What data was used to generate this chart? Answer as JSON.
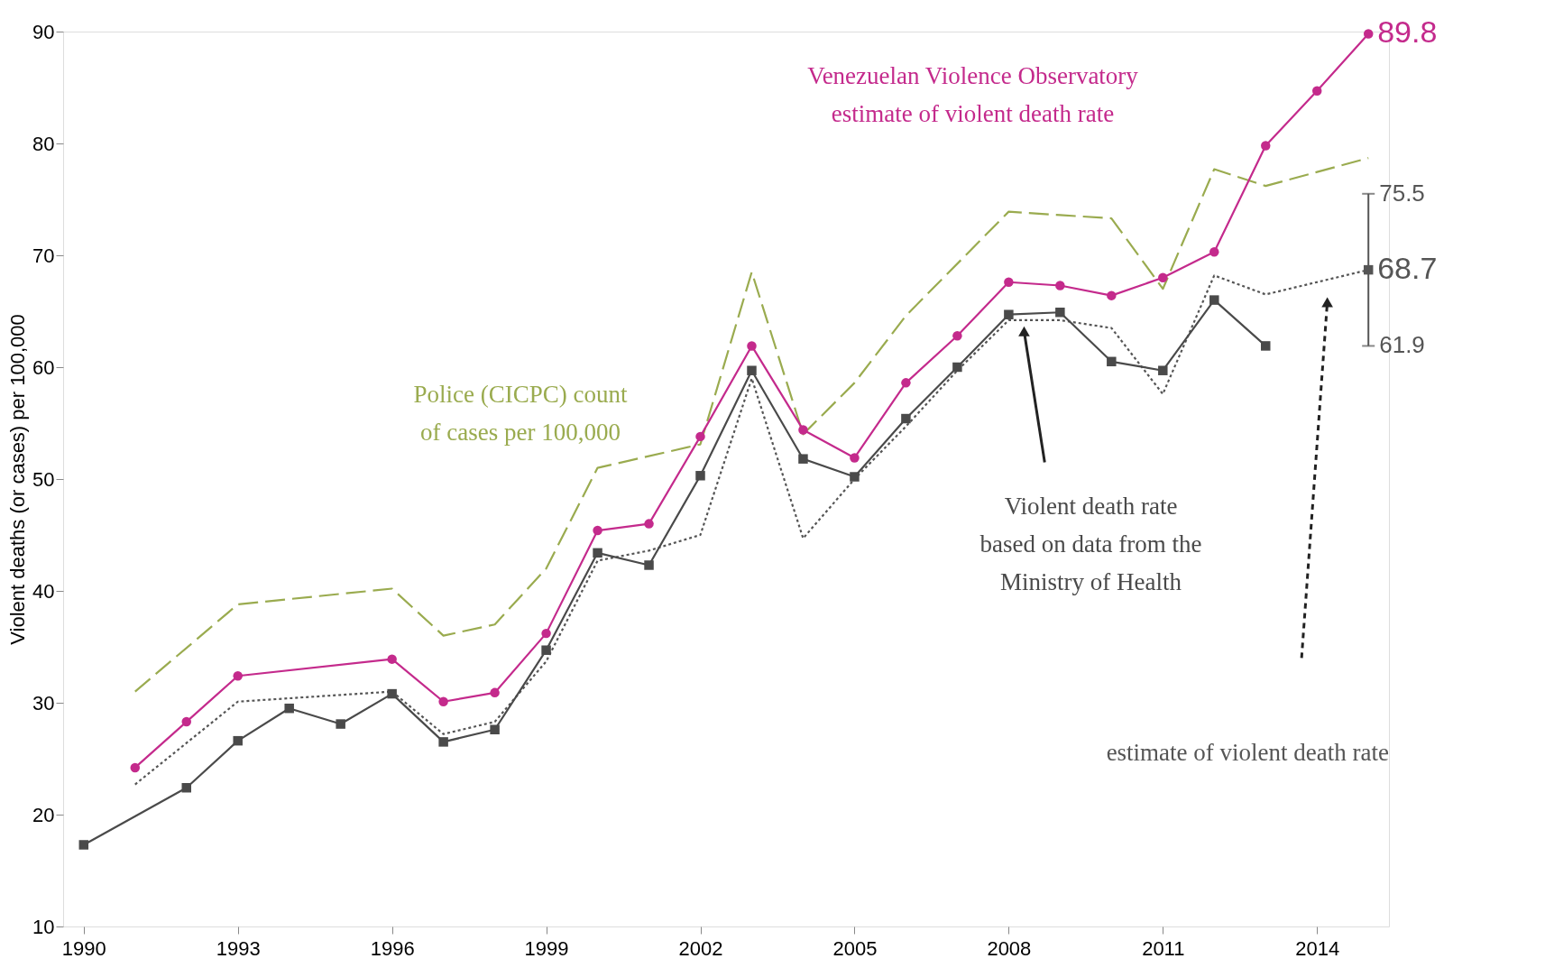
{
  "chart_data": {
    "type": "line",
    "ylabel": "Violent deaths (or cases) per 100,000",
    "xlim": [
      1989.6,
      2015.4
    ],
    "ylim": [
      10,
      90
    ],
    "xticks": [
      1990,
      1993,
      1996,
      1999,
      2002,
      2005,
      2008,
      2011,
      2014
    ],
    "yticks": [
      10,
      20,
      30,
      40,
      50,
      60,
      70,
      80,
      90
    ],
    "grid": false,
    "series": [
      {
        "name": "Police (CICPC) count\nof cases per 100,000",
        "color": "#9aab4f",
        "line_style": "dashed",
        "marker": "none",
        "x": [
          1991,
          1993,
          1996,
          1997,
          1998,
          1999,
          2000,
          2002,
          2003,
          2004,
          2005,
          2006,
          2008,
          2009,
          2010,
          2011,
          2012,
          2013,
          2015
        ],
        "values": [
          31.0,
          38.8,
          40.2,
          36.0,
          37.0,
          42.0,
          51.0,
          53.1,
          68.5,
          54.0,
          58.6,
          64.6,
          73.9,
          73.6,
          73.3,
          67.0,
          77.7,
          76.2,
          78.7
        ]
      },
      {
        "name": "estimate of violent death rate",
        "color": "#555555",
        "line_style": "dotted",
        "marker": "none",
        "x": [
          1991,
          1993,
          1996,
          1997,
          1998,
          1999,
          2000,
          2001,
          2002,
          2003,
          2004,
          2005,
          2006,
          2007,
          2008,
          2009,
          2010,
          2011,
          2012,
          2013,
          2015
        ],
        "values": [
          22.7,
          30.1,
          31.0,
          27.2,
          28.3,
          33.7,
          42.7,
          43.6,
          45.0,
          59.0,
          44.7,
          50.0,
          54.7,
          59.7,
          64.2,
          64.2,
          63.5,
          57.6,
          68.2,
          66.5,
          68.7
        ]
      },
      {
        "name": "Violent death rate\nbased on data from the\nMinistry of Health",
        "color": "#4a4a4a",
        "line_style": "solid",
        "marker": "square",
        "x": [
          1990,
          1992,
          1993,
          1994,
          1995,
          1996,
          1997,
          1998,
          1999,
          2000,
          2001,
          2002,
          2003,
          2004,
          2005,
          2006,
          2007,
          2008,
          2009,
          2010,
          2011,
          2012,
          2013
        ],
        "values": [
          17.3,
          22.4,
          26.6,
          29.5,
          28.1,
          30.8,
          26.5,
          27.6,
          34.7,
          43.4,
          42.3,
          50.3,
          59.7,
          51.8,
          50.2,
          55.4,
          60.0,
          64.7,
          64.9,
          60.5,
          59.7,
          66.0,
          61.9
        ]
      },
      {
        "name": "Venezuelan Violence Observatory\nestimate of violent death rate",
        "color": "#c42a8c",
        "line_style": "solid",
        "marker": "circle",
        "x": [
          1991,
          1992,
          1993,
          1996,
          1997,
          1998,
          1999,
          2000,
          2001,
          2002,
          2003,
          2004,
          2005,
          2006,
          2007,
          2008,
          2009,
          2010,
          2011,
          2012,
          2013,
          2014,
          2015
        ],
        "values": [
          24.2,
          28.3,
          32.4,
          33.9,
          30.1,
          30.9,
          36.2,
          45.4,
          46.0,
          53.8,
          61.9,
          54.4,
          51.9,
          58.6,
          62.8,
          67.6,
          67.3,
          66.4,
          68.0,
          70.3,
          79.8,
          84.7,
          89.8
        ],
        "value_labels": [
          null,
          null,
          null,
          null,
          null,
          null,
          null,
          null,
          null,
          null,
          null,
          null,
          null,
          null,
          null,
          null,
          null,
          null,
          null,
          null,
          null,
          null,
          "89.8"
        ]
      },
      {
        "type": "scatter",
        "color": "#555555",
        "marker": "square",
        "x": [
          2015
        ],
        "values": [
          68.7
        ],
        "errors": [
          [
            61.9,
            75.5
          ]
        ],
        "value_labels": [
          "68.7"
        ]
      }
    ],
    "annotations": [
      {
        "text": "75.5",
        "x": 2015,
        "y": 75.5
      },
      {
        "text": "61.9",
        "x": 2015,
        "y": 61.9
      }
    ]
  }
}
